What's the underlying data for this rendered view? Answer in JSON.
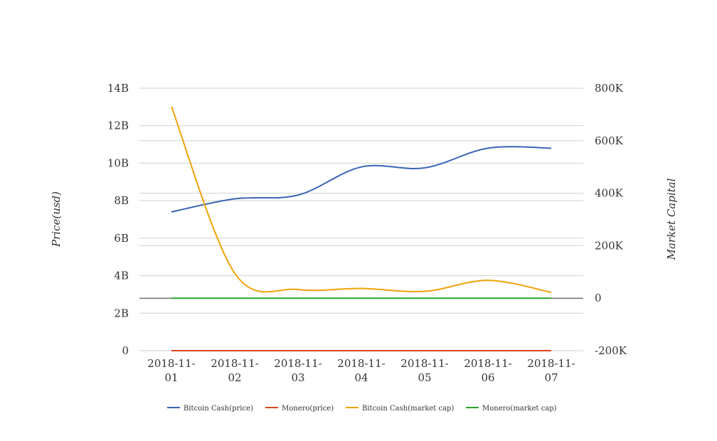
{
  "chart_data": {
    "type": "line",
    "title": "",
    "x": [
      "2018-11-01",
      "2018-11-02",
      "2018-11-03",
      "2018-11-04",
      "2018-11-05",
      "2018-11-06",
      "2018-11-07"
    ],
    "x_tick_labels": [
      [
        "2018-11-",
        "01"
      ],
      [
        "2018-11-",
        "02"
      ],
      [
        "2018-11-",
        "03"
      ],
      [
        "2018-11-",
        "04"
      ],
      [
        "2018-11-",
        "05"
      ],
      [
        "2018-11-",
        "06"
      ],
      [
        "2018-11-",
        "07"
      ]
    ],
    "y_left": {
      "label": "Price(usd)",
      "ylim": [
        0,
        14000000000
      ],
      "ticks": [
        0,
        2000000000,
        4000000000,
        6000000000,
        8000000000,
        10000000000,
        12000000000,
        14000000000
      ],
      "tick_labels": [
        "0",
        "2B",
        "4B",
        "6B",
        "8B",
        "10B",
        "12B",
        "14B"
      ]
    },
    "y_right": {
      "label": "Market Capital",
      "ylim": [
        -200000,
        800000
      ],
      "ticks": [
        -200000,
        0,
        200000,
        400000,
        600000,
        800000
      ],
      "tick_labels": [
        "-200K",
        "0",
        "200K",
        "400K",
        "600K",
        "800K"
      ]
    },
    "grid": true,
    "legend_position": "bottom",
    "series": [
      {
        "name": "Bitcoin Cash(price)",
        "axis": "left",
        "color": "#3b65b5",
        "values": [
          7400000000,
          8100000000,
          8300000000,
          9800000000,
          9750000000,
          10800000000,
          10800000000
        ]
      },
      {
        "name": "Monero(price)",
        "axis": "left",
        "color": "#d9441c",
        "values": [
          2500,
          2500,
          2500,
          2500,
          2500,
          2500,
          2500
        ]
      },
      {
        "name": "Bitcoin Cash(market cap)",
        "axis": "right",
        "color": "#f0a30a",
        "values": [
          730000,
          95000,
          33000,
          37000,
          26000,
          68000,
          22000
        ]
      },
      {
        "name": "Monero(market cap)",
        "axis": "right",
        "color": "#2ca02c",
        "values": [
          0,
          0,
          0,
          0,
          0,
          0,
          0
        ]
      }
    ]
  }
}
